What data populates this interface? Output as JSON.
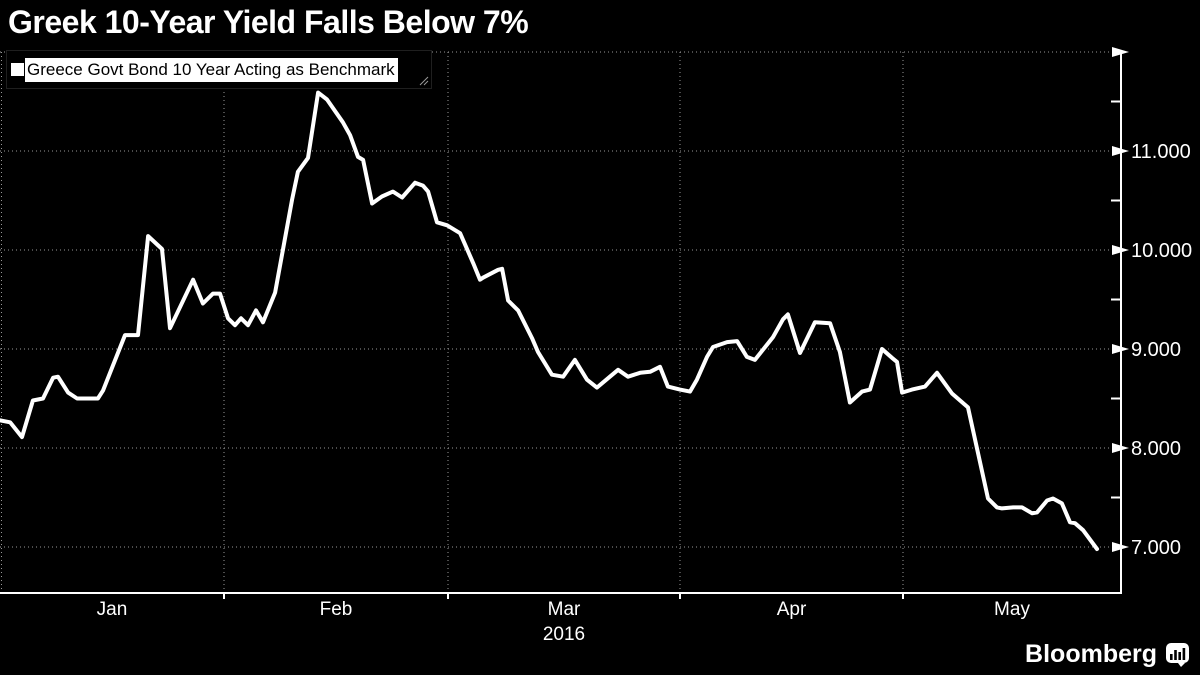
{
  "title": "Greek 10-Year Yield Falls Below 7%",
  "legend": {
    "marker": "white-square",
    "label": "Greece Govt Bond 10 Year Acting as Benchmark"
  },
  "branding": {
    "wordmark": "Bloomberg"
  },
  "colors": {
    "background": "#000000",
    "line": "#ffffff",
    "grid": "#999999",
    "axis": "#ffffff",
    "title_text": "#ffffff",
    "legend_text": "#000000",
    "legend_highlight": "#ffffff"
  },
  "chart_data": {
    "type": "line",
    "title": "Greek 10-Year Yield Falls Below 7%",
    "grid": "dotted",
    "legend_position": "top-left",
    "x_axis": {
      "unit": "time, Jan-May 2016",
      "tick_labels": [
        "Jan",
        "Feb",
        "Mar",
        "Apr",
        "May"
      ],
      "year_label": "2016",
      "year_label_under": "Mar",
      "x_encoding": "fractional month: 0=Jan 1, 1=Feb 1, 2=Mar 1, 3=Apr 1, 4=May 1, 5=end of May"
    },
    "y_axis": {
      "side": "right",
      "tick_values": [
        7,
        8,
        9,
        10,
        11
      ],
      "tick_labels": [
        "7.000",
        "8.000",
        "9.000",
        "10.000",
        "11.000"
      ],
      "minor_tick_values": [
        7.5,
        8.5,
        9.5,
        10.5,
        11.5
      ],
      "top_value": 12,
      "range": [
        6.54,
        12
      ]
    },
    "series": [
      {
        "name": "Greece Govt Bond 10 Year Acting as Benchmark",
        "color": "#ffffff",
        "points": [
          [
            0.0,
            8.28
          ],
          [
            0.045,
            8.26
          ],
          [
            0.098,
            8.11
          ],
          [
            0.147,
            8.48
          ],
          [
            0.192,
            8.5
          ],
          [
            0.237,
            8.71
          ],
          [
            0.259,
            8.72
          ],
          [
            0.304,
            8.56
          ],
          [
            0.344,
            8.5
          ],
          [
            0.437,
            8.5
          ],
          [
            0.46,
            8.58
          ],
          [
            0.558,
            9.14
          ],
          [
            0.616,
            9.14
          ],
          [
            0.661,
            10.14
          ],
          [
            0.723,
            10.01
          ],
          [
            0.759,
            9.21
          ],
          [
            0.862,
            9.7
          ],
          [
            0.906,
            9.46
          ],
          [
            0.951,
            9.56
          ],
          [
            0.982,
            9.56
          ],
          [
            1.018,
            9.31
          ],
          [
            1.049,
            9.24
          ],
          [
            1.076,
            9.31
          ],
          [
            1.107,
            9.24
          ],
          [
            1.143,
            9.39
          ],
          [
            1.174,
            9.27
          ],
          [
            1.228,
            9.57
          ],
          [
            1.304,
            10.51
          ],
          [
            1.33,
            10.79
          ],
          [
            1.375,
            10.93
          ],
          [
            1.42,
            11.59
          ],
          [
            1.46,
            11.52
          ],
          [
            1.531,
            11.29
          ],
          [
            1.563,
            11.16
          ],
          [
            1.598,
            10.94
          ],
          [
            1.621,
            10.91
          ],
          [
            1.661,
            10.47
          ],
          [
            1.705,
            10.54
          ],
          [
            1.754,
            10.59
          ],
          [
            1.795,
            10.53
          ],
          [
            1.853,
            10.68
          ],
          [
            1.888,
            10.65
          ],
          [
            1.911,
            10.59
          ],
          [
            1.951,
            10.28
          ],
          [
            1.996,
            10.25
          ],
          [
            2.052,
            10.17
          ],
          [
            2.108,
            9.87
          ],
          [
            2.138,
            9.7
          ],
          [
            2.151,
            9.72
          ],
          [
            2.216,
            9.8
          ],
          [
            2.233,
            9.81
          ],
          [
            2.259,
            9.49
          ],
          [
            2.302,
            9.39
          ],
          [
            2.362,
            9.11
          ],
          [
            2.388,
            8.97
          ],
          [
            2.448,
            8.74
          ],
          [
            2.496,
            8.72
          ],
          [
            2.547,
            8.89
          ],
          [
            2.599,
            8.69
          ],
          [
            2.642,
            8.61
          ],
          [
            2.698,
            8.72
          ],
          [
            2.733,
            8.79
          ],
          [
            2.776,
            8.72
          ],
          [
            2.828,
            8.76
          ],
          [
            2.871,
            8.77
          ],
          [
            2.914,
            8.82
          ],
          [
            2.948,
            8.62
          ],
          [
            3.0,
            8.59
          ],
          [
            3.045,
            8.57
          ],
          [
            3.076,
            8.69
          ],
          [
            3.121,
            8.92
          ],
          [
            3.148,
            9.02
          ],
          [
            3.211,
            9.07
          ],
          [
            3.256,
            9.08
          ],
          [
            3.3,
            8.92
          ],
          [
            3.336,
            8.89
          ],
          [
            3.417,
            9.12
          ],
          [
            3.462,
            9.3
          ],
          [
            3.484,
            9.35
          ],
          [
            3.538,
            8.96
          ],
          [
            3.605,
            9.27
          ],
          [
            3.673,
            9.26
          ],
          [
            3.717,
            8.97
          ],
          [
            3.762,
            8.46
          ],
          [
            3.816,
            8.57
          ],
          [
            3.852,
            8.59
          ],
          [
            3.906,
            9.0
          ],
          [
            3.951,
            8.91
          ],
          [
            3.973,
            8.87
          ],
          [
            3.996,
            8.56
          ],
          [
            4.041,
            8.59
          ],
          [
            4.101,
            8.62
          ],
          [
            4.156,
            8.76
          ],
          [
            4.225,
            8.55
          ],
          [
            4.298,
            8.41
          ],
          [
            4.39,
            7.49
          ],
          [
            4.431,
            7.4
          ],
          [
            4.454,
            7.39
          ],
          [
            4.505,
            7.4
          ],
          [
            4.546,
            7.4
          ],
          [
            4.592,
            7.34
          ],
          [
            4.615,
            7.35
          ],
          [
            4.661,
            7.47
          ],
          [
            4.688,
            7.49
          ],
          [
            4.729,
            7.44
          ],
          [
            4.766,
            7.25
          ],
          [
            4.789,
            7.24
          ],
          [
            4.826,
            7.17
          ],
          [
            4.89,
            6.98
          ]
        ]
      }
    ]
  }
}
